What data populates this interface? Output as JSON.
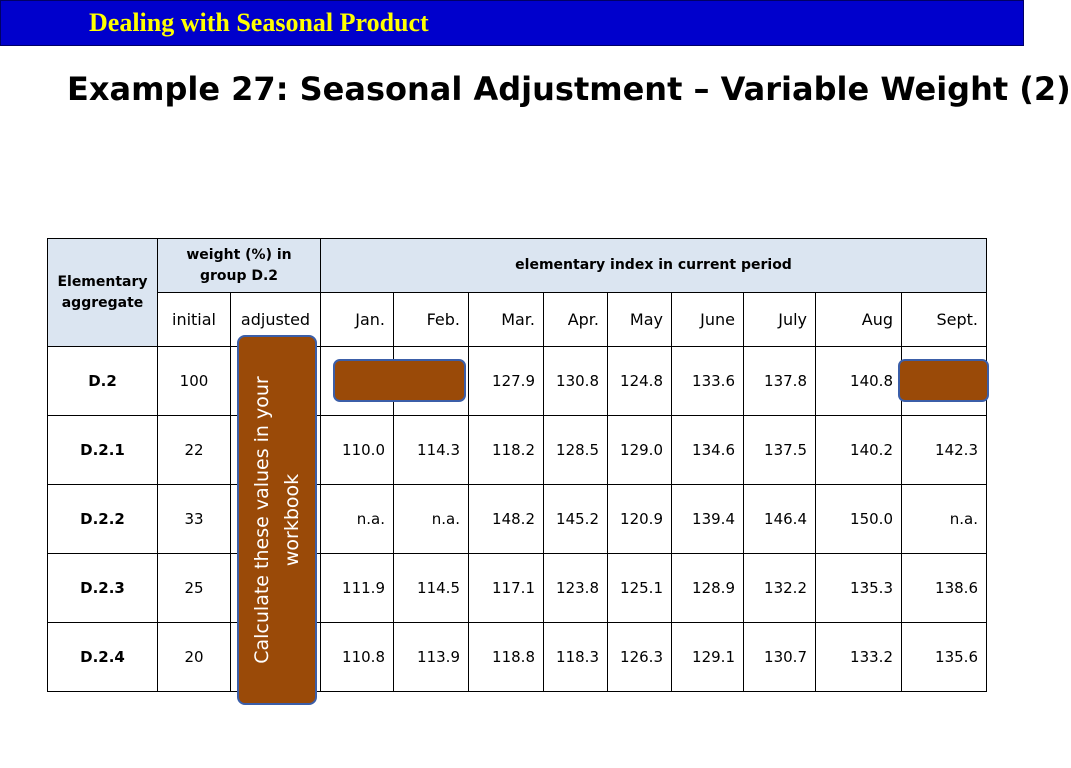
{
  "header": {
    "banner": "Dealing with Seasonal Product"
  },
  "slide": {
    "title": "Example 27: Seasonal Adjustment – Variable Weight (2)"
  },
  "table": {
    "col_elementary": "Elementary aggregate",
    "col_weight": "weight (%) in group D.2",
    "col_index": "elementary index in current period",
    "sub_initial": "initial",
    "sub_adjusted": "adjusted",
    "months": [
      "Jan.",
      "Feb.",
      "Mar.",
      "Apr.",
      "May",
      "June",
      "July",
      "Aug",
      "Sept."
    ],
    "rows": [
      {
        "label": "D.2",
        "initial": "100",
        "values": [
          "",
          "",
          "127.9",
          "130.8",
          "124.8",
          "133.6",
          "137.8",
          "140.8",
          ""
        ]
      },
      {
        "label": "D.2.1",
        "initial": "22",
        "values": [
          "110.0",
          "114.3",
          "118.2",
          "128.5",
          "129.0",
          "134.6",
          "137.5",
          "140.2",
          "142.3"
        ]
      },
      {
        "label": "D.2.2",
        "initial": "33",
        "values": [
          "n.a.",
          "n.a.",
          "148.2",
          "145.2",
          "120.9",
          "139.4",
          "146.4",
          "150.0",
          "n.a."
        ]
      },
      {
        "label": "D.2.3",
        "initial": "25",
        "values": [
          "111.9",
          "114.5",
          "117.1",
          "123.8",
          "125.1",
          "128.9",
          "132.2",
          "135.3",
          "138.6"
        ]
      },
      {
        "label": "D.2.4",
        "initial": "20",
        "values": [
          "110.8",
          "113.9",
          "118.8",
          "118.3",
          "126.3",
          "129.1",
          "130.7",
          "133.2",
          "135.6"
        ]
      }
    ]
  },
  "callout": {
    "text": "Calculate these values in your workbook"
  },
  "colors": {
    "banner_bg": "#0000cc",
    "banner_text": "#ffff00",
    "header_fill": "#dbe5f1",
    "callout_fill": "#9a4a08",
    "callout_border": "#3b5ea8"
  }
}
